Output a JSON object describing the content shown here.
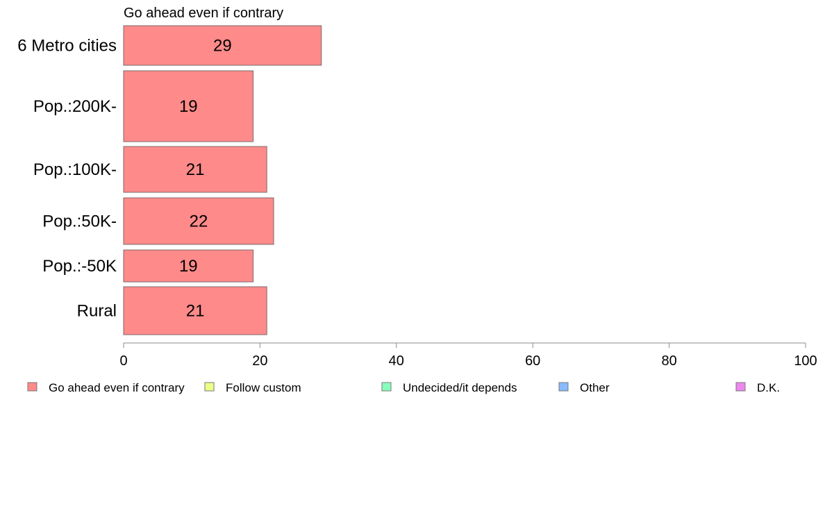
{
  "chart_data": {
    "type": "bar",
    "orientation": "horizontal",
    "title": "Go ahead even if contrary",
    "categories": [
      "6 Metro cities",
      "Pop.:200K-",
      "Pop.:100K-",
      "Pop.:50K-",
      "Pop.:-50K",
      "Rural"
    ],
    "series": [
      {
        "name": "Go ahead even if contrary",
        "values": [
          29,
          19,
          21,
          22,
          19,
          21
        ],
        "color": "#ff8a8a"
      }
    ],
    "xlim": [
      0,
      100
    ],
    "xticks": [
      0,
      20,
      40,
      60,
      80,
      100
    ],
    "grid": false,
    "legend": {
      "placement": "bottom",
      "entries": [
        {
          "label": "Go ahead even if contrary",
          "color": "#ff8a8a"
        },
        {
          "label": "Follow custom",
          "color": "#eeff88"
        },
        {
          "label": "Undecided/it depends",
          "color": "#88ffbb"
        },
        {
          "label": "Other",
          "color": "#88bbff"
        },
        {
          "label": "D.K.",
          "color": "#ee88ee"
        }
      ]
    }
  }
}
